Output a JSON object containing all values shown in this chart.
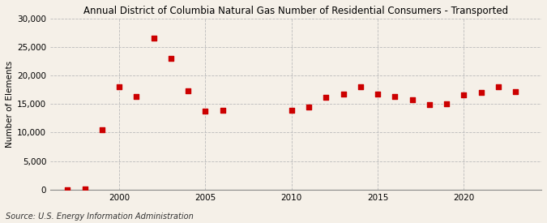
{
  "title": "Annual District of Columbia Natural Gas Number of Residential Consumers - Transported",
  "ylabel": "Number of Elements",
  "source": "Source: U.S. Energy Information Administration",
  "background_color": "#f5f0e8",
  "marker_color": "#cc0000",
  "years": [
    1997,
    1998,
    1999,
    2000,
    2001,
    2002,
    2003,
    2004,
    2005,
    2006,
    2010,
    2011,
    2012,
    2013,
    2014,
    2015,
    2016,
    2017,
    2018,
    2019,
    2020,
    2021,
    2022,
    2023
  ],
  "values": [
    50,
    200,
    10500,
    18000,
    16300,
    26500,
    23000,
    17300,
    13800,
    13900,
    13900,
    14500,
    16100,
    16800,
    18000,
    16800,
    16300,
    15700,
    14900,
    15000,
    16600,
    17000,
    18000,
    17100
  ],
  "ylim": [
    0,
    30000
  ],
  "xlim": [
    1996,
    2024.5
  ],
  "yticks": [
    0,
    5000,
    10000,
    15000,
    20000,
    25000,
    30000
  ],
  "xticks": [
    2000,
    2005,
    2010,
    2015,
    2020
  ],
  "title_fontsize": 8.5,
  "ylabel_fontsize": 7.5,
  "source_fontsize": 7,
  "tick_fontsize": 7.5,
  "marker_size": 14
}
